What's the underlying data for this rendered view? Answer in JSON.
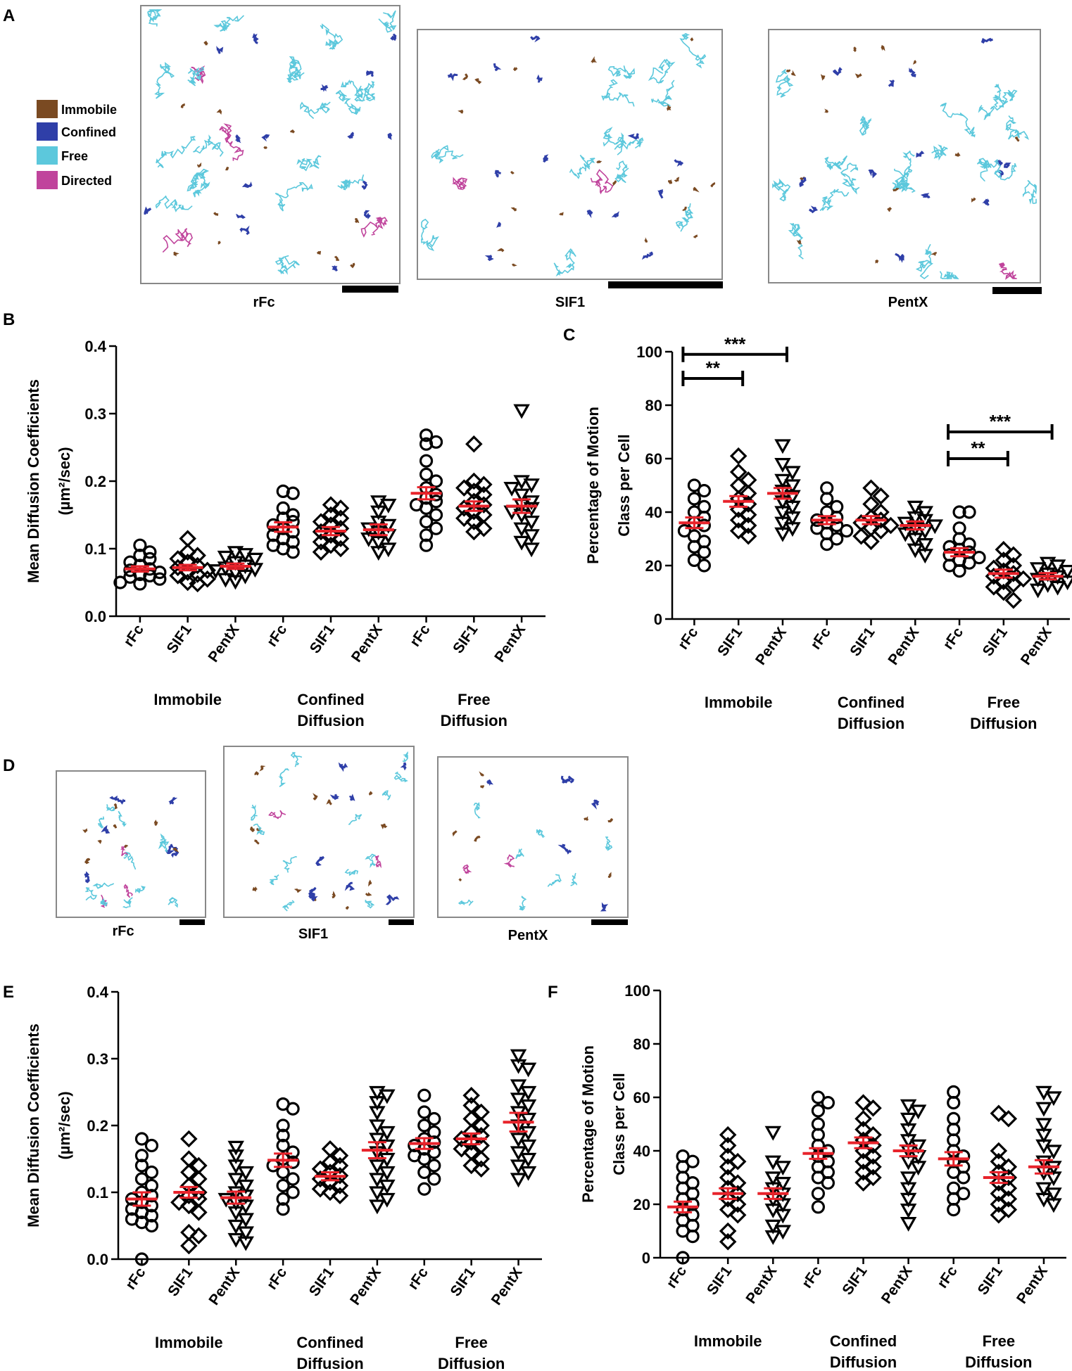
{
  "colors": {
    "immobile": "#7a4a22",
    "confined": "#2f3fa8",
    "free": "#5cc8dc",
    "directed": "#c0449c",
    "mean_bar": "#e8232b",
    "scale_bar": "#000000"
  },
  "panel_a": {
    "letter": "A",
    "legend": [
      {
        "label": "Immobile",
        "color": "#7a4a22"
      },
      {
        "label": "Confined",
        "color": "#2f3fa8"
      },
      {
        "label": "Free",
        "color": "#5cc8dc"
      },
      {
        "label": "Directed",
        "color": "#c0449c"
      }
    ],
    "images": [
      "rFc",
      "SIF1",
      "PentX"
    ]
  },
  "panel_d": {
    "letter": "D",
    "images": [
      "rFc",
      "SIF1",
      "PentX"
    ]
  },
  "chart_data": [
    {
      "panel": "B",
      "type": "scatter",
      "ylabel": "Mean Diffusion Coefficients",
      "ylabel_unit": "(µm²/sec)",
      "ylim": [
        0,
        0.4
      ],
      "yticks": [
        "0.0",
        "0.1",
        "0.2",
        "0.3",
        "0.4"
      ],
      "categories": [
        "rFc",
        "SIF1",
        "PentX",
        "rFc",
        "SIF1",
        "PentX",
        "rFc",
        "SIF1",
        "PentX"
      ],
      "groups": [
        "Immobile",
        "Confined Diffusion",
        "Free Diffusion"
      ],
      "means": [
        0.07,
        0.072,
        0.074,
        0.132,
        0.126,
        0.128,
        0.182,
        0.163,
        0.163
      ],
      "sems": [
        0.004,
        0.004,
        0.004,
        0.007,
        0.006,
        0.008,
        0.009,
        0.007,
        0.01
      ],
      "points": [
        [
          0.105,
          0.095,
          0.09,
          0.085,
          0.08,
          0.075,
          0.07,
          0.068,
          0.065,
          0.062,
          0.06,
          0.058,
          0.055,
          0.05,
          0.048
        ],
        [
          0.115,
          0.095,
          0.09,
          0.085,
          0.08,
          0.075,
          0.072,
          0.068,
          0.065,
          0.062,
          0.06,
          0.055,
          0.05,
          0.048
        ],
        [
          0.095,
          0.092,
          0.088,
          0.085,
          0.08,
          0.075,
          0.072,
          0.07,
          0.068,
          0.065,
          0.06,
          0.055,
          0.052
        ],
        [
          0.185,
          0.182,
          0.16,
          0.15,
          0.145,
          0.14,
          0.135,
          0.13,
          0.125,
          0.12,
          0.115,
          0.11,
          0.105,
          0.1,
          0.095
        ],
        [
          0.165,
          0.16,
          0.15,
          0.145,
          0.14,
          0.135,
          0.13,
          0.125,
          0.12,
          0.115,
          0.11,
          0.105,
          0.1,
          0.095
        ],
        [
          0.17,
          0.165,
          0.155,
          0.14,
          0.135,
          0.13,
          0.125,
          0.12,
          0.115,
          0.11,
          0.1,
          0.095
        ],
        [
          0.268,
          0.258,
          0.255,
          0.23,
          0.21,
          0.2,
          0.19,
          0.18,
          0.175,
          0.17,
          0.165,
          0.16,
          0.15,
          0.14,
          0.13,
          0.12,
          0.105
        ],
        [
          0.255,
          0.2,
          0.195,
          0.19,
          0.185,
          0.18,
          0.17,
          0.165,
          0.16,
          0.155,
          0.15,
          0.145,
          0.14,
          0.13,
          0.125
        ],
        [
          0.305,
          0.2,
          0.195,
          0.19,
          0.18,
          0.17,
          0.165,
          0.16,
          0.155,
          0.15,
          0.14,
          0.13,
          0.12,
          0.11,
          0.1
        ]
      ]
    },
    {
      "panel": "C",
      "type": "scatter",
      "ylabel": "Percentage of Motion",
      "ylabel2": "Class per Cell",
      "ylim": [
        0,
        100
      ],
      "yticks": [
        "0",
        "20",
        "40",
        "60",
        "80",
        "100"
      ],
      "categories": [
        "rFc",
        "SIF1",
        "PentX",
        "rFc",
        "SIF1",
        "PentX",
        "rFc",
        "SIF1",
        "PentX"
      ],
      "groups": [
        "Immobile",
        "Confined Diffusion",
        "Free Diffusion"
      ],
      "means": [
        36,
        44,
        47,
        37,
        37,
        35,
        25,
        17,
        16
      ],
      "sems": [
        2,
        2,
        2,
        1.5,
        1.5,
        1.5,
        1.5,
        1.5,
        1.2
      ],
      "significance": [
        {
          "from": 0,
          "to": 2,
          "label": "***",
          "level": 99
        },
        {
          "from": 0,
          "to": 1,
          "label": "**",
          "level": 90
        },
        {
          "from": 6,
          "to": 8,
          "label": "***",
          "level": 70
        },
        {
          "from": 6,
          "to": 7,
          "label": "**",
          "level": 60
        }
      ],
      "points": [
        [
          50,
          48,
          45,
          42,
          40,
          38,
          36,
          35,
          33,
          31,
          29,
          27,
          25,
          22,
          20
        ],
        [
          61,
          55,
          52,
          50,
          47,
          45,
          43,
          41,
          39,
          37,
          35,
          33,
          31
        ],
        [
          65,
          58,
          55,
          52,
          50,
          48,
          46,
          44,
          42,
          40,
          38,
          36,
          34,
          32
        ],
        [
          49,
          45,
          42,
          40,
          38,
          37,
          36,
          35,
          34,
          33,
          32,
          30,
          28
        ],
        [
          49,
          46,
          43,
          40,
          38,
          37,
          36,
          35,
          34,
          33,
          31,
          29
        ],
        [
          42,
          40,
          38,
          37,
          36,
          35,
          34,
          33,
          32,
          30,
          28,
          26,
          24
        ],
        [
          40,
          40,
          34,
          30,
          28,
          27,
          26,
          25,
          24,
          23,
          22,
          21,
          20,
          18
        ],
        [
          26,
          24,
          22,
          20,
          19,
          18,
          17,
          16,
          15,
          14,
          13,
          12,
          10,
          7
        ],
        [
          21,
          20,
          19,
          18,
          17,
          16,
          15,
          14,
          13,
          12,
          11
        ]
      ]
    },
    {
      "panel": "E",
      "type": "scatter",
      "ylabel": "Mean Diffusion Coefficients",
      "ylabel_unit": "(µm²/sec)",
      "ylim": [
        0,
        0.4
      ],
      "yticks": [
        "0.0",
        "0.1",
        "0.2",
        "0.3",
        "0.4"
      ],
      "categories": [
        "rFc",
        "SIF1",
        "PentX",
        "rFc",
        "SIF1",
        "PentX",
        "rFc",
        "SIF1",
        "PentX"
      ],
      "groups": [
        "Immobile",
        "Confined Diffusion",
        "Free Diffusion"
      ],
      "means": [
        0.09,
        0.1,
        0.092,
        0.148,
        0.124,
        0.163,
        0.173,
        0.18,
        0.205
      ],
      "sems": [
        0.01,
        0.008,
        0.009,
        0.01,
        0.006,
        0.012,
        0.008,
        0.008,
        0.014
      ],
      "points": [
        [
          0.18,
          0.17,
          0.155,
          0.14,
          0.13,
          0.12,
          0.11,
          0.1,
          0.095,
          0.09,
          0.085,
          0.08,
          0.075,
          0.07,
          0.065,
          0.06,
          0.055,
          0.05,
          0.0
        ],
        [
          0.18,
          0.15,
          0.14,
          0.13,
          0.12,
          0.11,
          0.1,
          0.095,
          0.09,
          0.085,
          0.08,
          0.07,
          0.04,
          0.035,
          0.02
        ],
        [
          0.168,
          0.155,
          0.14,
          0.13,
          0.12,
          0.11,
          0.1,
          0.095,
          0.09,
          0.085,
          0.08,
          0.07,
          0.06,
          0.05,
          0.04,
          0.03,
          0.025
        ],
        [
          0.232,
          0.225,
          0.2,
          0.185,
          0.17,
          0.16,
          0.15,
          0.145,
          0.14,
          0.13,
          0.12,
          0.11,
          0.1,
          0.09,
          0.075
        ],
        [
          0.165,
          0.155,
          0.145,
          0.14,
          0.135,
          0.13,
          0.125,
          0.12,
          0.115,
          0.11,
          0.105,
          0.1,
          0.095
        ],
        [
          0.25,
          0.245,
          0.235,
          0.22,
          0.2,
          0.19,
          0.18,
          0.17,
          0.16,
          0.15,
          0.14,
          0.13,
          0.12,
          0.11,
          0.1,
          0.09,
          0.08
        ],
        [
          0.245,
          0.22,
          0.21,
          0.2,
          0.19,
          0.18,
          0.175,
          0.17,
          0.165,
          0.16,
          0.155,
          0.15,
          0.14,
          0.13,
          0.12,
          0.105
        ],
        [
          0.245,
          0.23,
          0.22,
          0.21,
          0.2,
          0.19,
          0.185,
          0.18,
          0.175,
          0.17,
          0.165,
          0.16,
          0.15,
          0.14,
          0.135
        ],
        [
          0.305,
          0.29,
          0.285,
          0.26,
          0.25,
          0.24,
          0.23,
          0.22,
          0.21,
          0.2,
          0.19,
          0.18,
          0.17,
          0.16,
          0.15,
          0.14,
          0.13,
          0.12
        ]
      ]
    },
    {
      "panel": "F",
      "type": "scatter",
      "ylabel": "Percentage of Motion",
      "ylabel2": "Class per Cell",
      "ylim": [
        0,
        100
      ],
      "yticks": [
        "0",
        "20",
        "40",
        "60",
        "80",
        "100"
      ],
      "categories": [
        "rFc",
        "SIF1",
        "PentX",
        "rFc",
        "SIF1",
        "PentX",
        "rFc",
        "SIF1",
        "PentX"
      ],
      "groups": [
        "Immobile",
        "Confined Diffusion",
        "Free Diffusion"
      ],
      "means": [
        19,
        24,
        24,
        39,
        43,
        40,
        37,
        30,
        34
      ],
      "sems": [
        2,
        2,
        2,
        2,
        2,
        2,
        2.5,
        2,
        2.5
      ],
      "points": [
        [
          38,
          36,
          34,
          30,
          28,
          26,
          24,
          22,
          20,
          18,
          16,
          14,
          12,
          10,
          8,
          0
        ],
        [
          46,
          42,
          38,
          36,
          34,
          30,
          28,
          26,
          24,
          22,
          20,
          18,
          16,
          10,
          6
        ],
        [
          47,
          36,
          34,
          30,
          28,
          26,
          24,
          22,
          20,
          18,
          16,
          12,
          10,
          8
        ],
        [
          60,
          58,
          55,
          50,
          46,
          42,
          40,
          38,
          36,
          34,
          32,
          30,
          28,
          24,
          19
        ],
        [
          58,
          56,
          52,
          48,
          46,
          44,
          42,
          40,
          38,
          36,
          34,
          32,
          30,
          28
        ],
        [
          57,
          55,
          52,
          48,
          44,
          42,
          40,
          38,
          36,
          34,
          30,
          26,
          22,
          18,
          13
        ],
        [
          62,
          58,
          52,
          48,
          44,
          40,
          38,
          36,
          34,
          32,
          30,
          26,
          24,
          22,
          18
        ],
        [
          54,
          52,
          40,
          36,
          34,
          32,
          30,
          28,
          26,
          24,
          22,
          20,
          18,
          16
        ],
        [
          62,
          60,
          56,
          50,
          46,
          42,
          40,
          36,
          34,
          32,
          30,
          26,
          24,
          22,
          20
        ]
      ]
    }
  ]
}
